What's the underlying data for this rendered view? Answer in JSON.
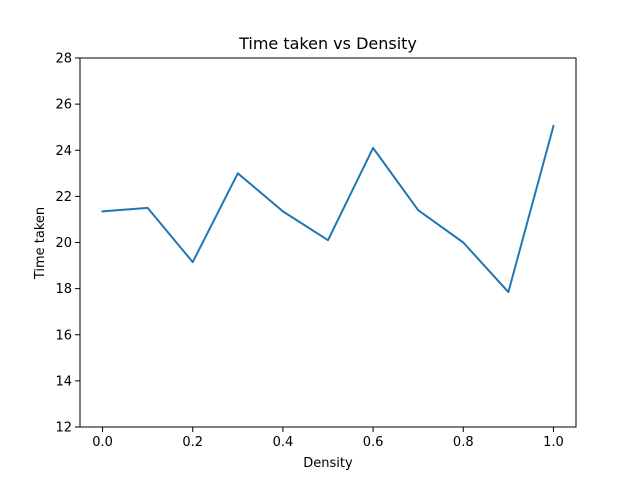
{
  "chart_data": {
    "type": "line",
    "title": "Time taken vs Density",
    "xlabel": "Density",
    "ylabel": "Time taken",
    "xlim": [
      -0.05,
      1.05
    ],
    "ylim": [
      12,
      28
    ],
    "x_ticks": [
      0.0,
      0.2,
      0.4,
      0.6,
      0.8,
      1.0
    ],
    "x_tick_labels": [
      "0.0",
      "0.2",
      "0.4",
      "0.6",
      "0.8",
      "1.0"
    ],
    "y_ticks": [
      12,
      14,
      16,
      18,
      20,
      22,
      24,
      26,
      28
    ],
    "y_tick_labels": [
      "12",
      "14",
      "16",
      "18",
      "20",
      "22",
      "24",
      "26",
      "28"
    ],
    "grid": false,
    "series": [
      {
        "color": "#1f77b4",
        "x": [
          0.0,
          0.1,
          0.2,
          0.3,
          0.4,
          0.5,
          0.6,
          0.7,
          0.8,
          0.9,
          1.0
        ],
        "y": [
          21.35,
          21.5,
          19.15,
          23.0,
          21.35,
          20.1,
          24.1,
          21.4,
          20.0,
          17.85,
          25.05
        ]
      }
    ]
  }
}
